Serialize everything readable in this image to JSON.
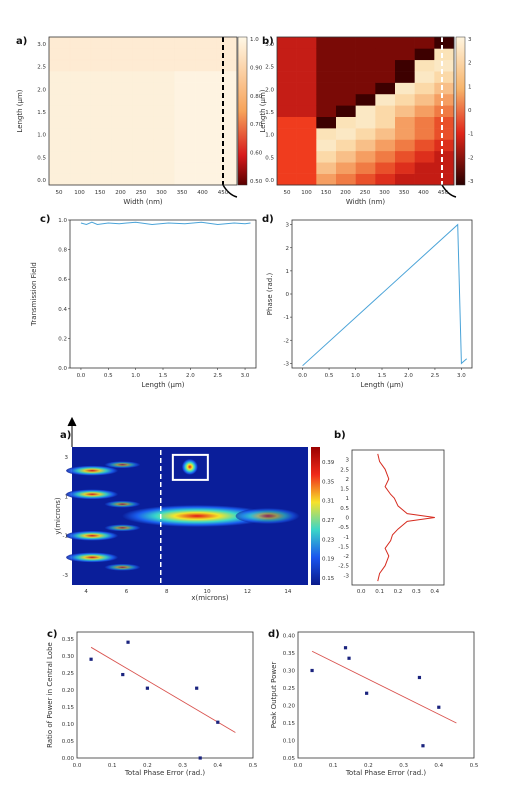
{
  "figure1": {
    "panels": {
      "a": {
        "label": "a)",
        "xlabel": "Width (nm)",
        "ylabel": "Length (μm)",
        "xticks": [
          "50",
          "100",
          "150",
          "200",
          "250",
          "300",
          "350",
          "400",
          "450"
        ],
        "yticks": [
          "0.0",
          "0.5",
          "1.0",
          "1.5",
          "2.0",
          "2.5",
          "3.0"
        ],
        "colorbar_ticks": [
          "1.0",
          "0.90",
          "0.80",
          "0.70",
          "0.60",
          "0.50"
        ]
      },
      "b": {
        "label": "b)",
        "xlabel": "Width (nm)",
        "ylabel": "Length (μm)",
        "xticks": [
          "50",
          "100",
          "150",
          "200",
          "250",
          "300",
          "350",
          "400",
          "450"
        ],
        "yticks": [
          "0.0",
          "0.5",
          "1.0",
          "1.5",
          "2.0",
          "2.5",
          "3.0"
        ],
        "colorbar_ticks": [
          "3",
          "2",
          "1",
          "0",
          "-1",
          "-2",
          "-3"
        ]
      },
      "c": {
        "label": "c)",
        "xlabel": "Length (μm)",
        "ylabel": "Transmission Field",
        "xticks": [
          "0.0",
          "0.5",
          "1.0",
          "1.5",
          "2.0",
          "2.5",
          "3.0"
        ],
        "yticks": [
          "0.0",
          "0.2",
          "0.4",
          "0.6",
          "0.8",
          "1.0"
        ]
      },
      "d": {
        "label": "d)",
        "xlabel": "Length (μm)",
        "ylabel": "Phase (rad.)",
        "xticks": [
          "0.0",
          "0.5",
          "1.0",
          "1.5",
          "2.0",
          "2.5",
          "3.0"
        ],
        "yticks": [
          "-3",
          "-2",
          "-1",
          "0",
          "1",
          "2",
          "3"
        ]
      }
    }
  },
  "figure2": {
    "panels": {
      "a": {
        "label": "a)",
        "xlabel": "x(microns)",
        "ylabel": "y(microns)",
        "xticks": [
          "4",
          "6",
          "8",
          "10",
          "12",
          "14"
        ],
        "yticks": [
          "3",
          "1",
          "-1",
          "-3"
        ],
        "colorbar_ticks": [
          "0.39",
          "0.35",
          "0.31",
          "0.27",
          "0.23",
          "0.19",
          "0.15"
        ]
      },
      "b": {
        "label": "b)",
        "xticks": [
          "0.0",
          "0.1",
          "0.2",
          "0.3",
          "0.4"
        ],
        "yticks": [
          "3",
          "2.5",
          "2",
          "1.5",
          "1",
          "0.5",
          "0",
          "-0.5",
          "-1",
          "-1.5",
          "-2",
          "-2.5",
          "-3"
        ]
      },
      "c": {
        "label": "c)",
        "xlabel": "Total Phase Error (rad.)",
        "ylabel": "Ratio of Power in Central Lobe",
        "xticks": [
          "0.0",
          "0.1",
          "0.2",
          "0.3",
          "0.4",
          "0.5"
        ],
        "yticks": [
          "0.00",
          "0.05",
          "0.10",
          "0.15",
          "0.20",
          "0.25",
          "0.30",
          "0.35"
        ]
      },
      "d": {
        "label": "d)",
        "xlabel": "Total Phase Error (rad.)",
        "ylabel": "Peak Output Power",
        "xticks": [
          "0.0",
          "0.1",
          "0.2",
          "0.3",
          "0.4",
          "0.5"
        ],
        "yticks": [
          "0.05",
          "0.10",
          "0.15",
          "0.20",
          "0.25",
          "0.30",
          "0.35",
          "0.40"
        ]
      }
    }
  },
  "chart_data": [
    {
      "id": "f1a",
      "type": "heatmap",
      "xlim": [
        25,
        475
      ],
      "ylim": [
        0,
        3.2
      ],
      "title": "",
      "xlabel": "Width (nm)",
      "ylabel": "Length (μm)",
      "colorbar_range": [
        0.5,
        1.0
      ],
      "note_values": "near-uniform ~0.95"
    },
    {
      "id": "f1b",
      "type": "heatmap",
      "xlim": [
        25,
        475
      ],
      "ylim": [
        0,
        3.2
      ],
      "xlabel": "Width (nm)",
      "ylabel": "Length (μm)",
      "colorbar_range": [
        -3,
        3
      ]
    },
    {
      "id": "f1c",
      "type": "line",
      "xlabel": "Length (μm)",
      "ylabel": "Transmission Field",
      "xlim": [
        -0.2,
        3.2
      ],
      "ylim": [
        0,
        1.0
      ],
      "series": [
        {
          "x": [
            0,
            0.1,
            0.2,
            0.3,
            0.5,
            0.7,
            1.0,
            1.3,
            1.6,
            1.9,
            2.2,
            2.5,
            2.8,
            3.0,
            3.1
          ],
          "y": [
            0.98,
            0.97,
            0.985,
            0.97,
            0.98,
            0.975,
            0.985,
            0.97,
            0.98,
            0.975,
            0.985,
            0.97,
            0.98,
            0.975,
            0.98
          ]
        }
      ]
    },
    {
      "id": "f1d",
      "type": "line",
      "xlabel": "Length (μm)",
      "ylabel": "Phase (rad.)",
      "xlim": [
        -0.2,
        3.2
      ],
      "ylim": [
        -3.2,
        3.2
      ],
      "series": [
        {
          "x": [
            0,
            2.93,
            3.0,
            3.1
          ],
          "y": [
            -3.1,
            3.0,
            -3.0,
            -2.8
          ]
        }
      ]
    },
    {
      "id": "f2a",
      "type": "heatmap",
      "xlabel": "x(microns)",
      "ylabel": "y(microns)",
      "xlim": [
        3.3,
        15
      ],
      "ylim": [
        -3.5,
        3.5
      ],
      "colorbar_range": [
        0.15,
        0.42
      ]
    },
    {
      "id": "f2b",
      "type": "line",
      "xlim": [
        -0.05,
        0.45
      ],
      "ylim": [
        -3.5,
        3.5
      ],
      "series": [
        {
          "x": [
            0.09,
            0.1,
            0.13,
            0.15,
            0.13,
            0.16,
            0.18,
            0.2,
            0.25,
            0.4,
            0.25,
            0.2,
            0.17,
            0.16,
            0.13,
            0.15,
            0.13,
            0.1,
            0.09
          ],
          "y": [
            3.3,
            2.9,
            2.5,
            2.0,
            1.6,
            1.2,
            1.0,
            0.6,
            0.2,
            0.0,
            -0.2,
            -0.6,
            -0.9,
            -1.2,
            -1.6,
            -2.0,
            -2.5,
            -2.9,
            -3.3
          ]
        }
      ]
    },
    {
      "id": "f2c",
      "type": "scatter",
      "xlabel": "Total Phase Error (rad.)",
      "ylabel": "Ratio of Power in Central Lobe",
      "xlim": [
        0,
        0.5
      ],
      "ylim": [
        0,
        0.37
      ],
      "points": {
        "x": [
          0.04,
          0.13,
          0.145,
          0.2,
          0.34,
          0.35,
          0.4
        ],
        "y": [
          0.29,
          0.245,
          0.34,
          0.205,
          0.205,
          0.0,
          0.105
        ]
      },
      "fit": {
        "x": [
          0.04,
          0.45
        ],
        "y": [
          0.325,
          0.075
        ]
      }
    },
    {
      "id": "f2d",
      "type": "scatter",
      "xlabel": "Total Phase Error (rad.)",
      "ylabel": "Peak Output Power",
      "xlim": [
        0,
        0.5
      ],
      "ylim": [
        0.05,
        0.41
      ],
      "points": {
        "x": [
          0.04,
          0.135,
          0.145,
          0.195,
          0.345,
          0.355,
          0.4
        ],
        "y": [
          0.3,
          0.365,
          0.335,
          0.235,
          0.28,
          0.085,
          0.195
        ]
      },
      "fit": {
        "x": [
          0.04,
          0.45
        ],
        "y": [
          0.355,
          0.15
        ]
      }
    }
  ],
  "colors": {
    "line": "#4aa3d8",
    "fit": "#d9534f",
    "scatter": "#1a237e"
  }
}
